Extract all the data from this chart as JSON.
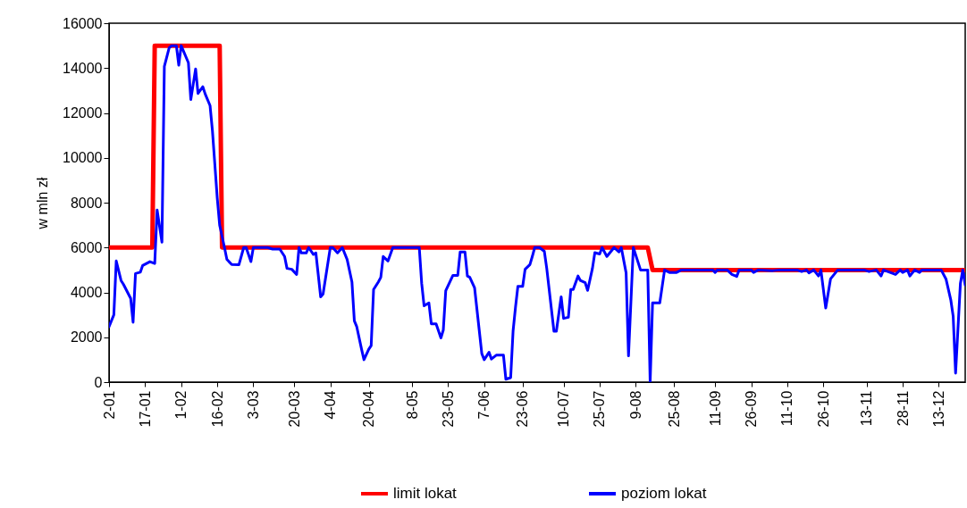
{
  "chart_data": {
    "type": "line",
    "ylabel": "w mln zł",
    "legend": "bottom",
    "xlim": [
      "--01-02",
      "--12-24"
    ],
    "ylim": [
      0,
      16000
    ],
    "yticks": [
      0,
      2000,
      4000,
      6000,
      8000,
      10000,
      12000,
      14000,
      16000
    ],
    "xticks": [
      {
        "value": "--01-02",
        "label": "2-01"
      },
      {
        "value": "--01-17",
        "label": "17-01"
      },
      {
        "value": "--02-01",
        "label": "1-02"
      },
      {
        "value": "--02-16",
        "label": "16-02"
      },
      {
        "value": "--03-03",
        "label": "3-03"
      },
      {
        "value": "--03-20",
        "label": "20-03"
      },
      {
        "value": "--04-04",
        "label": "4-04"
      },
      {
        "value": "--04-20",
        "label": "20-04"
      },
      {
        "value": "--05-08",
        "label": "8-05"
      },
      {
        "value": "--05-23",
        "label": "23-05"
      },
      {
        "value": "--06-07",
        "label": "7-06"
      },
      {
        "value": "--06-23",
        "label": "23-06"
      },
      {
        "value": "--07-10",
        "label": "10-07"
      },
      {
        "value": "--07-25",
        "label": "25-07"
      },
      {
        "value": "--08-09",
        "label": "9-08"
      },
      {
        "value": "--08-25",
        "label": "25-08"
      },
      {
        "value": "--09-11",
        "label": "11-09"
      },
      {
        "value": "--09-26",
        "label": "26-09"
      },
      {
        "value": "--10-11",
        "label": "11-10"
      },
      {
        "value": "--10-26",
        "label": "26-10"
      },
      {
        "value": "--11-13",
        "label": "13-11"
      },
      {
        "value": "--11-28",
        "label": "28-11"
      },
      {
        "value": "--12-13",
        "label": "13-12"
      }
    ],
    "series": [
      {
        "name": "limit lokat",
        "color": "#ff0000",
        "x": [
          "--01-02",
          "--01-20",
          "--01-21",
          "--02-17",
          "--02-18",
          "--08-14",
          "--08-16",
          "--12-24"
        ],
        "values": [
          6000,
          6000,
          15000,
          15000,
          6000,
          6000,
          5000,
          5000
        ]
      },
      {
        "name": "poziom lokat",
        "color": "#0000ff",
        "x": [
          "--01-02",
          "--01-04",
          "--01-05",
          "--01-07",
          "--01-08",
          "--01-11",
          "--01-12",
          "--01-13",
          "--01-15",
          "--01-16",
          "--01-19",
          "--01-21",
          "--01-22",
          "--01-24",
          "--01-25",
          "--01-27",
          "--01-28",
          "--01-30",
          "--01-31",
          "--02-01",
          "--02-04",
          "--02-05",
          "--02-07",
          "--02-08",
          "--02-10",
          "--02-11",
          "--02-13",
          "--02-14",
          "--02-16",
          "--02-17",
          "--02-19",
          "--02-20",
          "--02-22",
          "--02-25",
          "--02-27",
          "--02-28",
          "--03-02",
          "--03-03",
          "--03-09",
          "--03-11",
          "--03-14",
          "--03-16",
          "--03-17",
          "--03-19",
          "--03-21",
          "--03-22",
          "--03-23",
          "--03-25",
          "--03-26",
          "--03-28",
          "--03-29",
          "--03-31",
          "--04-01",
          "--04-04",
          "--04-05",
          "--04-07",
          "--04-09",
          "--04-11",
          "--04-13",
          "--04-14",
          "--04-15",
          "--04-17",
          "--04-18",
          "--04-20",
          "--04-21",
          "--04-22",
          "--04-24",
          "--04-25",
          "--04-26",
          "--04-28",
          "--04-30",
          "--05-11",
          "--05-12",
          "--05-13",
          "--05-15",
          "--05-16",
          "--05-18",
          "--05-20",
          "--05-21",
          "--05-22",
          "--05-24",
          "--05-25",
          "--05-27",
          "--05-28",
          "--05-30",
          "--05-31",
          "--06-01",
          "--06-03",
          "--06-06",
          "--06-07",
          "--06-09",
          "--06-10",
          "--06-12",
          "--06-15",
          "--06-16",
          "--06-18",
          "--06-19",
          "--06-20",
          "--06-21",
          "--06-23",
          "--06-24",
          "--06-26",
          "--06-27",
          "--06-28",
          "--06-30",
          "--07-02",
          "--07-03",
          "--07-06",
          "--07-07",
          "--07-09",
          "--07-10",
          "--07-12",
          "--07-13",
          "--07-14",
          "--07-16",
          "--07-17",
          "--07-19",
          "--07-20",
          "--07-22",
          "--07-23",
          "--07-25",
          "--07-26",
          "--07-28",
          "--07-31",
          "--08-02",
          "--08-03",
          "--08-05",
          "--08-06",
          "--08-08",
          "--08-11",
          "--08-14",
          "--08-15",
          "--08-16",
          "--08-19",
          "--08-21",
          "--08-23",
          "--08-26",
          "--08-28",
          "--09-10",
          "--09-11",
          "--09-12",
          "--09-16",
          "--09-18",
          "--09-20",
          "--09-21",
          "--09-26",
          "--09-27",
          "--09-29",
          "--10-05",
          "--10-08",
          "--10-15",
          "--10-17",
          "--10-19",
          "--10-20",
          "--10-22",
          "--10-24",
          "--10-25",
          "--10-27",
          "--10-29",
          "--11-01",
          "--11-12",
          "--11-14",
          "--11-17",
          "--11-19",
          "--11-20",
          "--11-25",
          "--11-27",
          "--11-28",
          "--11-30",
          "--12-01",
          "--12-03",
          "--12-05",
          "--12-06",
          "--12-14",
          "--12-16",
          "--12-18",
          "--12-19",
          "--12-20",
          "--12-22",
          "--12-23",
          "--12-24"
        ],
        "values": [
          2470,
          3000,
          5400,
          4530,
          4360,
          3730,
          2670,
          4840,
          4900,
          5200,
          5370,
          5290,
          7670,
          6240,
          14070,
          14900,
          15000,
          15000,
          14130,
          15000,
          14240,
          12600,
          13960,
          12870,
          13170,
          12840,
          12330,
          11200,
          8200,
          7000,
          6000,
          5470,
          5240,
          5230,
          6000,
          6000,
          5370,
          6000,
          6000,
          5930,
          5930,
          5600,
          5070,
          5030,
          4800,
          6000,
          5760,
          5760,
          6000,
          5690,
          5760,
          3800,
          3930,
          6000,
          6000,
          5760,
          6000,
          5470,
          4470,
          2730,
          2470,
          1470,
          1000,
          1470,
          1630,
          4130,
          4470,
          4670,
          5600,
          5400,
          6000,
          6000,
          4400,
          3400,
          3530,
          2600,
          2600,
          1970,
          2330,
          4070,
          4530,
          4760,
          4760,
          5800,
          5800,
          4730,
          4670,
          4200,
          1270,
          1000,
          1330,
          1030,
          1200,
          1200,
          130,
          200,
          2270,
          3330,
          4270,
          4270,
          5030,
          5240,
          5600,
          6000,
          6000,
          5830,
          5070,
          2270,
          2270,
          3800,
          2840,
          2890,
          4130,
          4130,
          4730,
          4530,
          4430,
          4090,
          5070,
          5770,
          5710,
          6000,
          5600,
          6000,
          5800,
          6000,
          4870,
          1170,
          6000,
          5000,
          5000,
          0,
          3530,
          3530,
          5000,
          4890,
          4890,
          5000,
          5000,
          4890,
          5000,
          5000,
          4800,
          4710,
          5000,
          5000,
          4890,
          5000,
          4970,
          5000,
          5000,
          4930,
          5000,
          4870,
          5000,
          4730,
          5000,
          3300,
          4600,
          5000,
          5000,
          4930,
          5000,
          4730,
          5000,
          4800,
          5000,
          4890,
          5000,
          4730,
          5000,
          4890,
          5000,
          5000,
          4600,
          3670,
          2930,
          400,
          4400,
          5000,
          4330
        ]
      }
    ]
  }
}
